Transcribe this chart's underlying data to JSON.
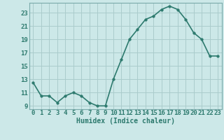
{
  "x": [
    0,
    1,
    2,
    3,
    4,
    5,
    6,
    7,
    8,
    9,
    10,
    11,
    12,
    13,
    14,
    15,
    16,
    17,
    18,
    19,
    20,
    21,
    22,
    23
  ],
  "y": [
    12.5,
    10.5,
    10.5,
    9.5,
    10.5,
    11.0,
    10.5,
    9.5,
    9.0,
    9.0,
    13.0,
    16.0,
    19.0,
    20.5,
    22.0,
    22.5,
    23.5,
    24.0,
    23.5,
    22.0,
    20.0,
    19.0,
    16.5,
    16.5
  ],
  "line_color": "#2d7a6e",
  "marker_size": 2.5,
  "bg_color": "#cce8e8",
  "grid_color": "#aacccc",
  "xlabel": "Humidex (Indice chaleur)",
  "yticks": [
    9,
    11,
    13,
    15,
    17,
    19,
    21,
    23
  ],
  "ylim": [
    8.5,
    24.5
  ],
  "xlim": [
    -0.5,
    23.5
  ],
  "xlabel_fontsize": 7,
  "tick_fontsize": 6.5,
  "line_width": 1.2
}
